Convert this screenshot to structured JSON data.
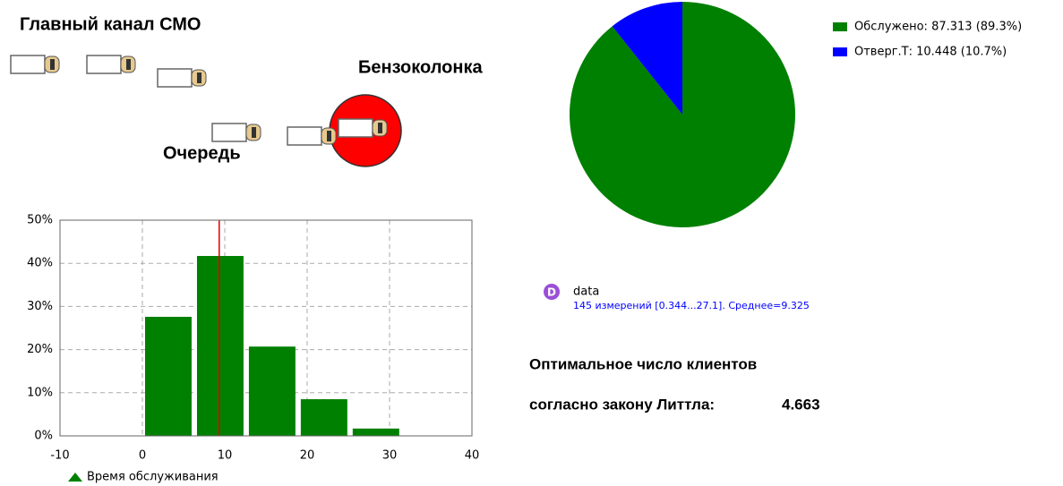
{
  "labels": {
    "main_channel": "Главный канал СМО",
    "station": "Бензоколонка",
    "queue": "Очередь",
    "optimal_line1": "Оптимальное число клиентов",
    "optimal_line2": "согласно закону Литтла:",
    "optimal_value": "4.663"
  },
  "dataset": {
    "icon": "D",
    "name": "data",
    "summary": "145 измерений [0.344...27.1]. Среднее=9.325"
  },
  "chart_data": [
    {
      "type": "pie",
      "categories": [
        "Обслужено: 87.313 (89.3%)",
        "Отверг.Т: 10.448 (10.7%)"
      ],
      "values": [
        87.313,
        10.448
      ],
      "colors": [
        "#008000",
        "#0000ff"
      ],
      "legend": "top-right"
    },
    {
      "type": "histogram",
      "series": [
        {
          "name": "Время обслуживания",
          "color": "#008000",
          "values": [
            27.6,
            41.7,
            20.7,
            8.5,
            1.7
          ]
        }
      ],
      "bins": [
        0,
        6.3,
        12.6,
        18.9,
        25.2,
        31.5
      ],
      "mean": 9.325,
      "mean_color": "#e00000",
      "xlim": [
        -10,
        40
      ],
      "xticks": [
        -10,
        0,
        10,
        20,
        30,
        40
      ],
      "ylim": [
        0,
        50
      ],
      "yticks": [
        {
          "value": 0,
          "label": "0%"
        },
        {
          "value": 10,
          "label": "10%"
        },
        {
          "value": 20,
          "label": "20%"
        },
        {
          "value": 30,
          "label": "30%"
        },
        {
          "value": 40,
          "label": "40%"
        },
        {
          "value": 50,
          "label": "50%"
        }
      ],
      "grid": true,
      "legend": "bottom-left"
    }
  ]
}
